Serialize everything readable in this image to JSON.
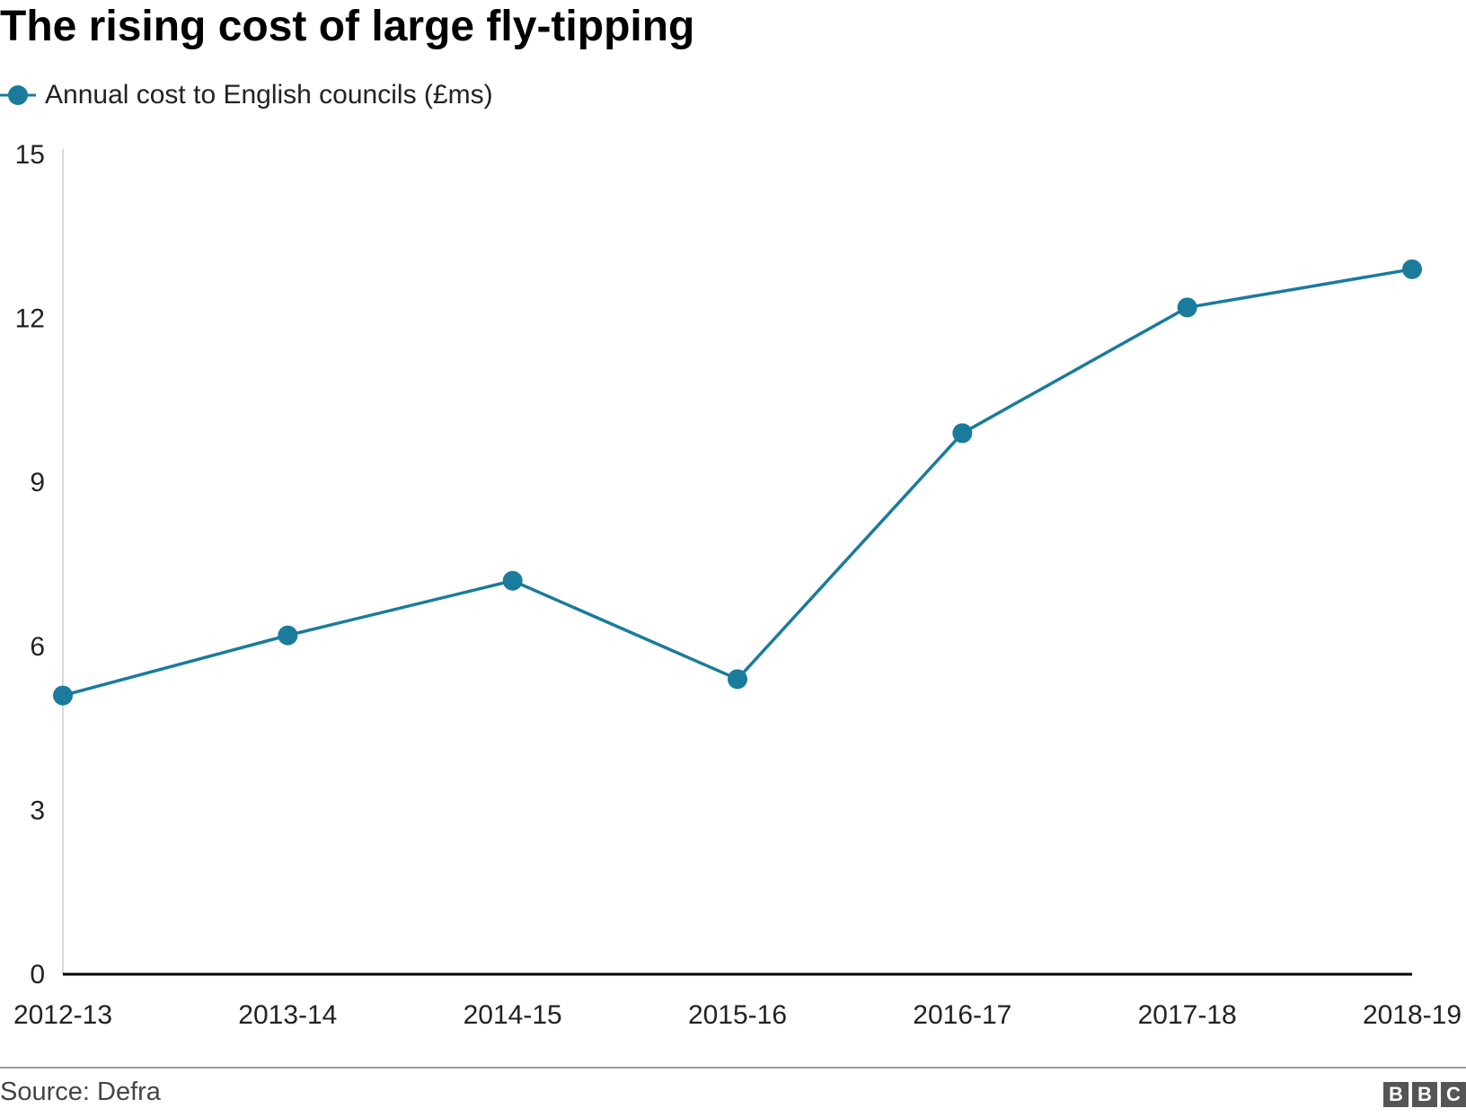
{
  "title": "The rising cost of large fly-tipping",
  "source": "Source: Defra",
  "logo": [
    "B",
    "B",
    "C"
  ],
  "colors": {
    "series": "#1a7b9c",
    "axis": "#000000",
    "gridline": "#cccccc",
    "footer_rule": "#999999"
  },
  "chart_data": {
    "type": "line",
    "title": "The rising cost of large fly-tipping",
    "categories": [
      "2012-13",
      "2013-14",
      "2014-15",
      "2015-16",
      "2016-17",
      "2017-18",
      "2018-19"
    ],
    "series": [
      {
        "name": "Annual cost to English councils (£ms)",
        "values": [
          5.1,
          6.2,
          7.2,
          5.4,
          9.9,
          12.2,
          12.9
        ]
      }
    ],
    "xlabel": "",
    "ylabel": "",
    "ylim": [
      0,
      15
    ],
    "yticks": [
      0,
      3,
      6,
      9,
      12,
      15
    ],
    "grid": false,
    "legend_position": "top-left",
    "markers": true
  }
}
